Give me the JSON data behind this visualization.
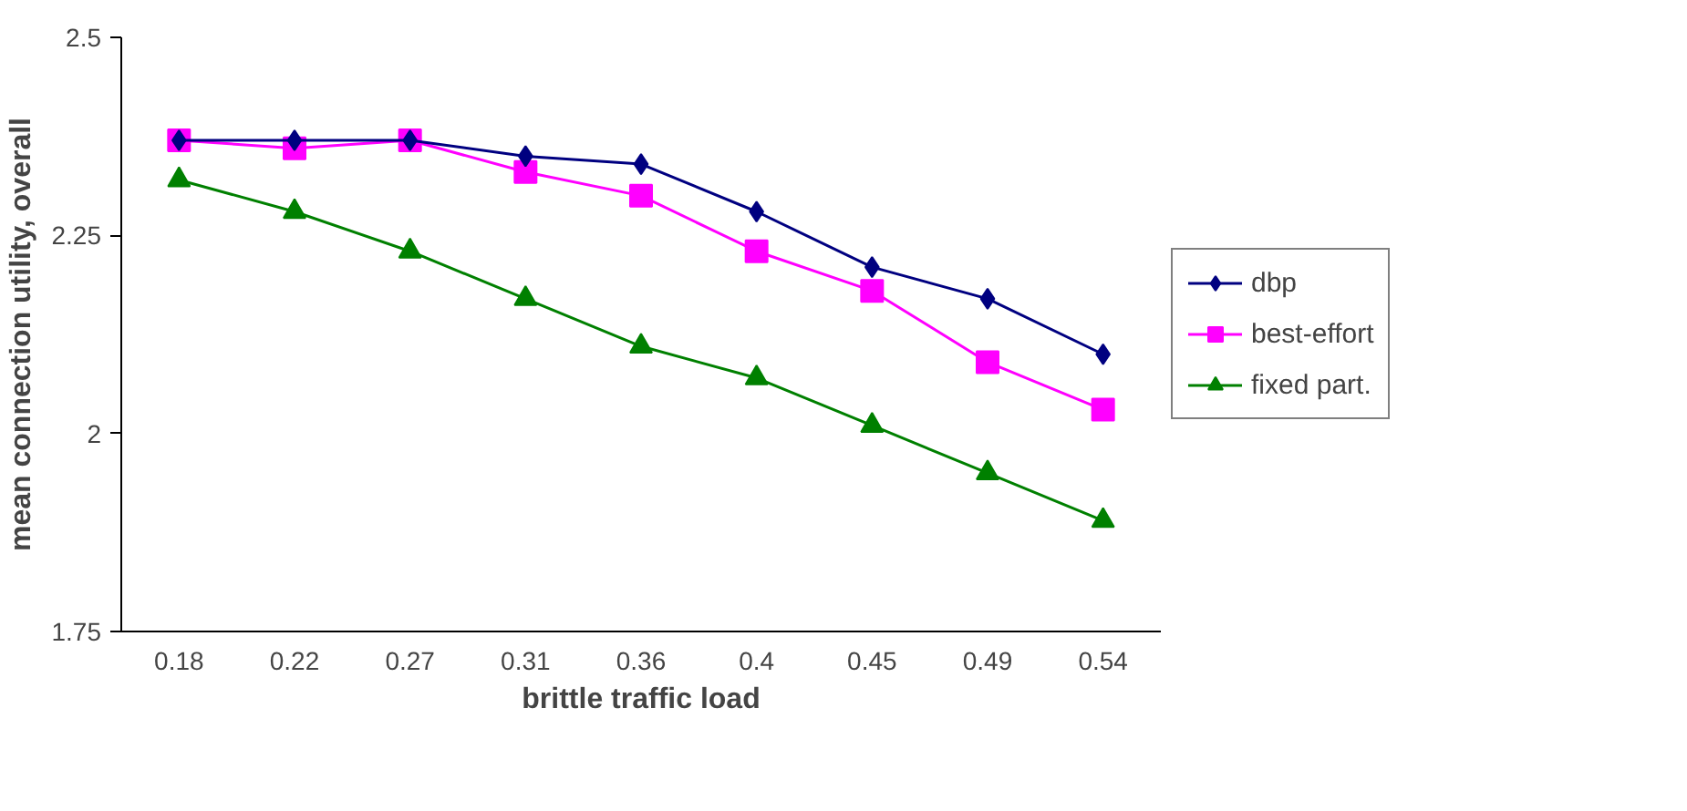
{
  "chart_data": {
    "type": "line",
    "xlabel": "brittle traffic load",
    "ylabel": "mean connection utility, overall",
    "categories": [
      "0.18",
      "0.22",
      "0.27",
      "0.31",
      "0.36",
      "0.4",
      "0.45",
      "0.49",
      "0.54"
    ],
    "series": [
      {
        "name": "dbp",
        "color": "#000080",
        "marker": "diamond",
        "values": [
          2.37,
          2.37,
          2.37,
          2.35,
          2.34,
          2.28,
          2.21,
          2.17,
          2.1
        ]
      },
      {
        "name": "best-effort",
        "color": "#ff00ff",
        "marker": "square",
        "values": [
          2.37,
          2.36,
          2.37,
          2.33,
          2.3,
          2.23,
          2.18,
          2.09,
          2.03
        ]
      },
      {
        "name": "fixed part.",
        "color": "#008000",
        "marker": "triangle",
        "values": [
          2.32,
          2.28,
          2.23,
          2.17,
          2.11,
          2.07,
          2.01,
          1.95,
          1.89
        ]
      }
    ],
    "ylim": [
      1.75,
      2.5
    ],
    "yticks": [
      1.75,
      {
        "value": 2.0,
        "label": "2"
      },
      2.25,
      2.5
    ],
    "grid": false,
    "legend": "right"
  }
}
